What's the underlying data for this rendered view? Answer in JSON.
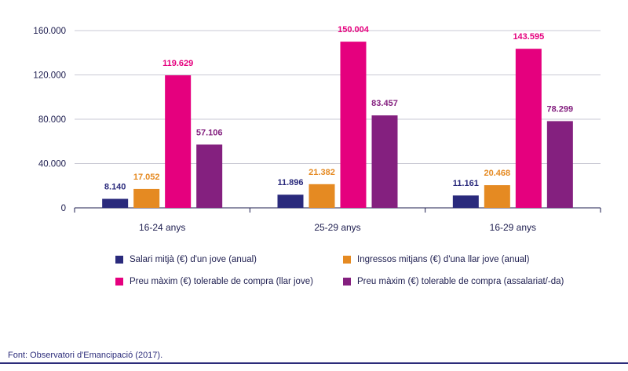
{
  "chart_data": {
    "type": "bar",
    "categories": [
      "16-24 anys",
      "25-29 anys",
      "16-29 anys"
    ],
    "series": [
      {
        "name": "Salari mitjà (€) d'un jove (anual)",
        "color": "#2a2a7c",
        "values": [
          8140,
          11896,
          11161
        ],
        "labels": [
          "8.140",
          "11.896",
          "11.161"
        ]
      },
      {
        "name": "Ingressos mitjans (€) d'una llar jove (anual)",
        "color": "#e58a22",
        "values": [
          17052,
          21382,
          20468
        ],
        "labels": [
          "17.052",
          "21.382",
          "20.468"
        ]
      },
      {
        "name": "Preu màxim (€) tolerable de compra (llar jove)",
        "color": "#e5007e",
        "values": [
          119629,
          150004,
          143595
        ],
        "labels": [
          "119.629",
          "150.004",
          "143.595"
        ]
      },
      {
        "name": "Preu màxim (€) tolerable de compra (assalariat/-da)",
        "color": "#84207f",
        "values": [
          57106,
          83457,
          78299
        ],
        "labels": [
          "57.106",
          "83.457",
          "78.299"
        ]
      }
    ],
    "yticks": [
      0,
      40000,
      80000,
      120000,
      160000
    ],
    "ytick_labels": [
      "0",
      "40.000",
      "80.000",
      "120.000",
      "160.000"
    ],
    "ylim": [
      0,
      160000
    ],
    "grid": true,
    "legend_position": "bottom"
  },
  "source": "Font: Observatori d'Emancipació (2017)."
}
